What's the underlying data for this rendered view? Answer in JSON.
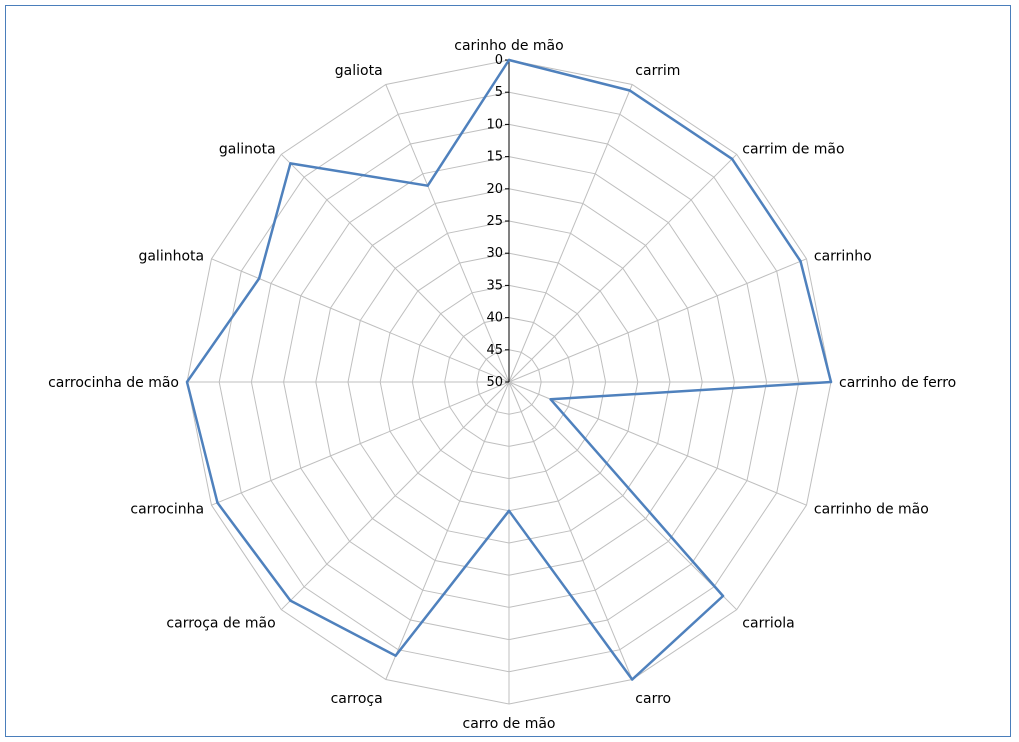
{
  "chart_data": {
    "type": "radar",
    "categories": [
      "carinho de mão",
      "carrim",
      "carrim de mão",
      "carrinho",
      "carrinho de ferro",
      "carrinho de mão",
      "carriola",
      "carro",
      "carro de mão",
      "carroça",
      "carroça de mão",
      "carrocinha",
      "carrocinha de mão",
      "galinhota",
      "galinota",
      "galiota"
    ],
    "values": [
      0,
      1,
      1,
      1,
      0,
      43,
      3,
      0,
      30,
      4,
      2,
      1,
      0,
      8,
      2,
      17
    ],
    "radial_ticks": [
      "0",
      "5",
      "10",
      "15",
      "20",
      "25",
      "30",
      "35",
      "40",
      "45",
      "50"
    ],
    "axis_range": [
      0,
      50
    ],
    "axis_reversed": true,
    "legend": "none",
    "grid": true,
    "colors": {
      "series": "#4f81bd",
      "grid": "#bfbfbf",
      "frame": "#4a7ebb"
    }
  }
}
